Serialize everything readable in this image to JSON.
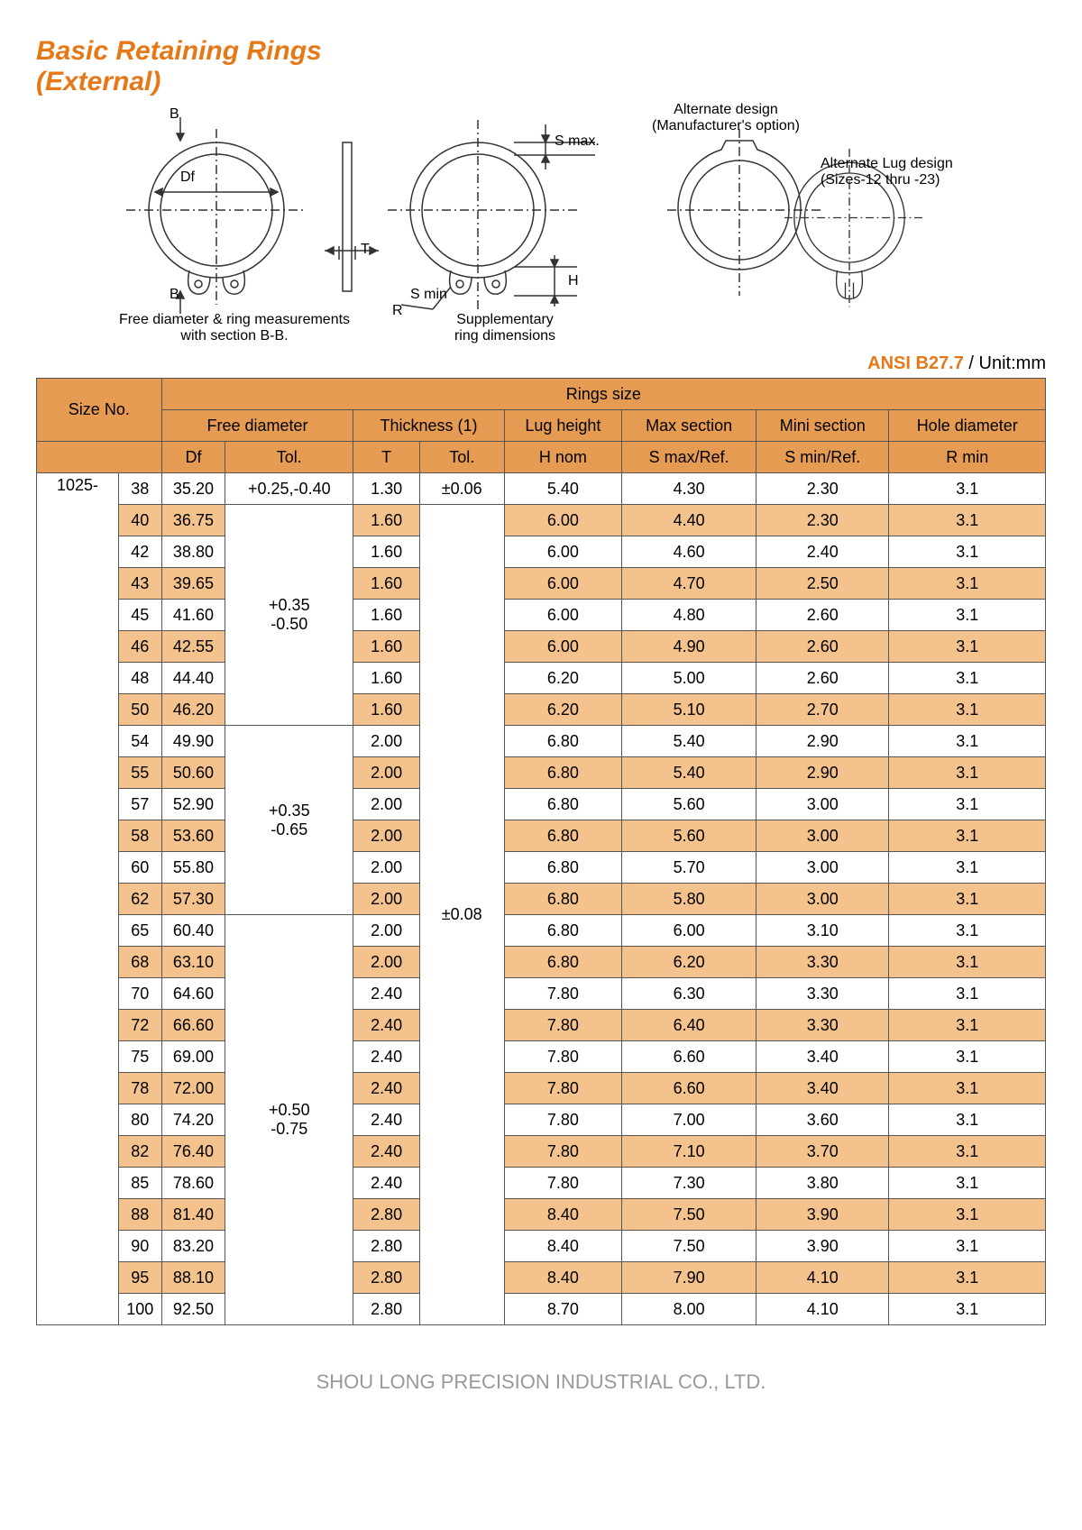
{
  "title_line1": "Basic Retaining Rings",
  "title_line2": "(External)",
  "standard": "ANSI B27.7",
  "unit_label": " / Unit:mm",
  "footer": "SHOU LONG PRECISION INDUSTRIAL CO., LTD.",
  "colors": {
    "accent": "#e67817",
    "header_bg": "#e69b52",
    "alt_row": "#f4c28c",
    "border": "#555555",
    "text": "#000000",
    "footer_text": "#999999"
  },
  "diagram_labels": {
    "b_top": "B",
    "b_bottom": "B",
    "df": "Df",
    "t": "T",
    "smax": "S max.",
    "smin": "S min",
    "r": "R",
    "h": "H",
    "free_caption": "Free diameter & ring measurements\nwith section B-B.",
    "supp_caption": "Supplementary\nring dimensions",
    "alt_design": "Alternate design\n(Manufacturer's option)",
    "alt_lug": "Alternate Lug design\n(Sizes-12 thru -23)"
  },
  "table": {
    "header": {
      "size_no": "Size No.",
      "rings_size": "Rings size",
      "free_diameter": "Free diameter",
      "thickness": "Thickness (1)",
      "lug_height": "Lug height",
      "max_section": "Max section",
      "mini_section": "Mini section",
      "hole_diameter": "Hole diameter",
      "df": "Df",
      "tol": "Tol.",
      "t": "T",
      "h_nom": "H nom",
      "smax_ref": "S max/Ref.",
      "smin_ref": "S min/Ref.",
      "r_min": "R min"
    },
    "series": "1025-",
    "tol_df_groups": [
      "+0.25,-0.40",
      "+0.35\n-0.50",
      "+0.35\n-0.65",
      "+0.50\n-0.75"
    ],
    "tol_t_groups": [
      "±0.06",
      "±0.08"
    ],
    "rows": [
      {
        "n": "38",
        "df": "35.20",
        "t": "1.30",
        "h": "5.40",
        "smax": "4.30",
        "smin": "2.30",
        "r": "3.1"
      },
      {
        "n": "40",
        "df": "36.75",
        "t": "1.60",
        "h": "6.00",
        "smax": "4.40",
        "smin": "2.30",
        "r": "3.1"
      },
      {
        "n": "42",
        "df": "38.80",
        "t": "1.60",
        "h": "6.00",
        "smax": "4.60",
        "smin": "2.40",
        "r": "3.1"
      },
      {
        "n": "43",
        "df": "39.65",
        "t": "1.60",
        "h": "6.00",
        "smax": "4.70",
        "smin": "2.50",
        "r": "3.1"
      },
      {
        "n": "45",
        "df": "41.60",
        "t": "1.60",
        "h": "6.00",
        "smax": "4.80",
        "smin": "2.60",
        "r": "3.1"
      },
      {
        "n": "46",
        "df": "42.55",
        "t": "1.60",
        "h": "6.00",
        "smax": "4.90",
        "smin": "2.60",
        "r": "3.1"
      },
      {
        "n": "48",
        "df": "44.40",
        "t": "1.60",
        "h": "6.20",
        "smax": "5.00",
        "smin": "2.60",
        "r": "3.1"
      },
      {
        "n": "50",
        "df": "46.20",
        "t": "1.60",
        "h": "6.20",
        "smax": "5.10",
        "smin": "2.70",
        "r": "3.1"
      },
      {
        "n": "54",
        "df": "49.90",
        "t": "2.00",
        "h": "6.80",
        "smax": "5.40",
        "smin": "2.90",
        "r": "3.1"
      },
      {
        "n": "55",
        "df": "50.60",
        "t": "2.00",
        "h": "6.80",
        "smax": "5.40",
        "smin": "2.90",
        "r": "3.1"
      },
      {
        "n": "57",
        "df": "52.90",
        "t": "2.00",
        "h": "6.80",
        "smax": "5.60",
        "smin": "3.00",
        "r": "3.1"
      },
      {
        "n": "58",
        "df": "53.60",
        "t": "2.00",
        "h": "6.80",
        "smax": "5.60",
        "smin": "3.00",
        "r": "3.1"
      },
      {
        "n": "60",
        "df": "55.80",
        "t": "2.00",
        "h": "6.80",
        "smax": "5.70",
        "smin": "3.00",
        "r": "3.1"
      },
      {
        "n": "62",
        "df": "57.30",
        "t": "2.00",
        "h": "6.80",
        "smax": "5.80",
        "smin": "3.00",
        "r": "3.1"
      },
      {
        "n": "65",
        "df": "60.40",
        "t": "2.00",
        "h": "6.80",
        "smax": "6.00",
        "smin": "3.10",
        "r": "3.1"
      },
      {
        "n": "68",
        "df": "63.10",
        "t": "2.00",
        "h": "6.80",
        "smax": "6.20",
        "smin": "3.30",
        "r": "3.1"
      },
      {
        "n": "70",
        "df": "64.60",
        "t": "2.40",
        "h": "7.80",
        "smax": "6.30",
        "smin": "3.30",
        "r": "3.1"
      },
      {
        "n": "72",
        "df": "66.60",
        "t": "2.40",
        "h": "7.80",
        "smax": "6.40",
        "smin": "3.30",
        "r": "3.1"
      },
      {
        "n": "75",
        "df": "69.00",
        "t": "2.40",
        "h": "7.80",
        "smax": "6.60",
        "smin": "3.40",
        "r": "3.1"
      },
      {
        "n": "78",
        "df": "72.00",
        "t": "2.40",
        "h": "7.80",
        "smax": "6.60",
        "smin": "3.40",
        "r": "3.1"
      },
      {
        "n": "80",
        "df": "74.20",
        "t": "2.40",
        "h": "7.80",
        "smax": "7.00",
        "smin": "3.60",
        "r": "3.1"
      },
      {
        "n": "82",
        "df": "76.40",
        "t": "2.40",
        "h": "7.80",
        "smax": "7.10",
        "smin": "3.70",
        "r": "3.1"
      },
      {
        "n": "85",
        "df": "78.60",
        "t": "2.40",
        "h": "7.80",
        "smax": "7.30",
        "smin": "3.80",
        "r": "3.1"
      },
      {
        "n": "88",
        "df": "81.40",
        "t": "2.80",
        "h": "8.40",
        "smax": "7.50",
        "smin": "3.90",
        "r": "3.1"
      },
      {
        "n": "90",
        "df": "83.20",
        "t": "2.80",
        "h": "8.40",
        "smax": "7.50",
        "smin": "3.90",
        "r": "3.1"
      },
      {
        "n": "95",
        "df": "88.10",
        "t": "2.80",
        "h": "8.40",
        "smax": "7.90",
        "smin": "4.10",
        "r": "3.1"
      },
      {
        "n": "100",
        "df": "92.50",
        "t": "2.80",
        "h": "8.70",
        "smax": "8.00",
        "smin": "4.10",
        "r": "3.1"
      }
    ]
  }
}
